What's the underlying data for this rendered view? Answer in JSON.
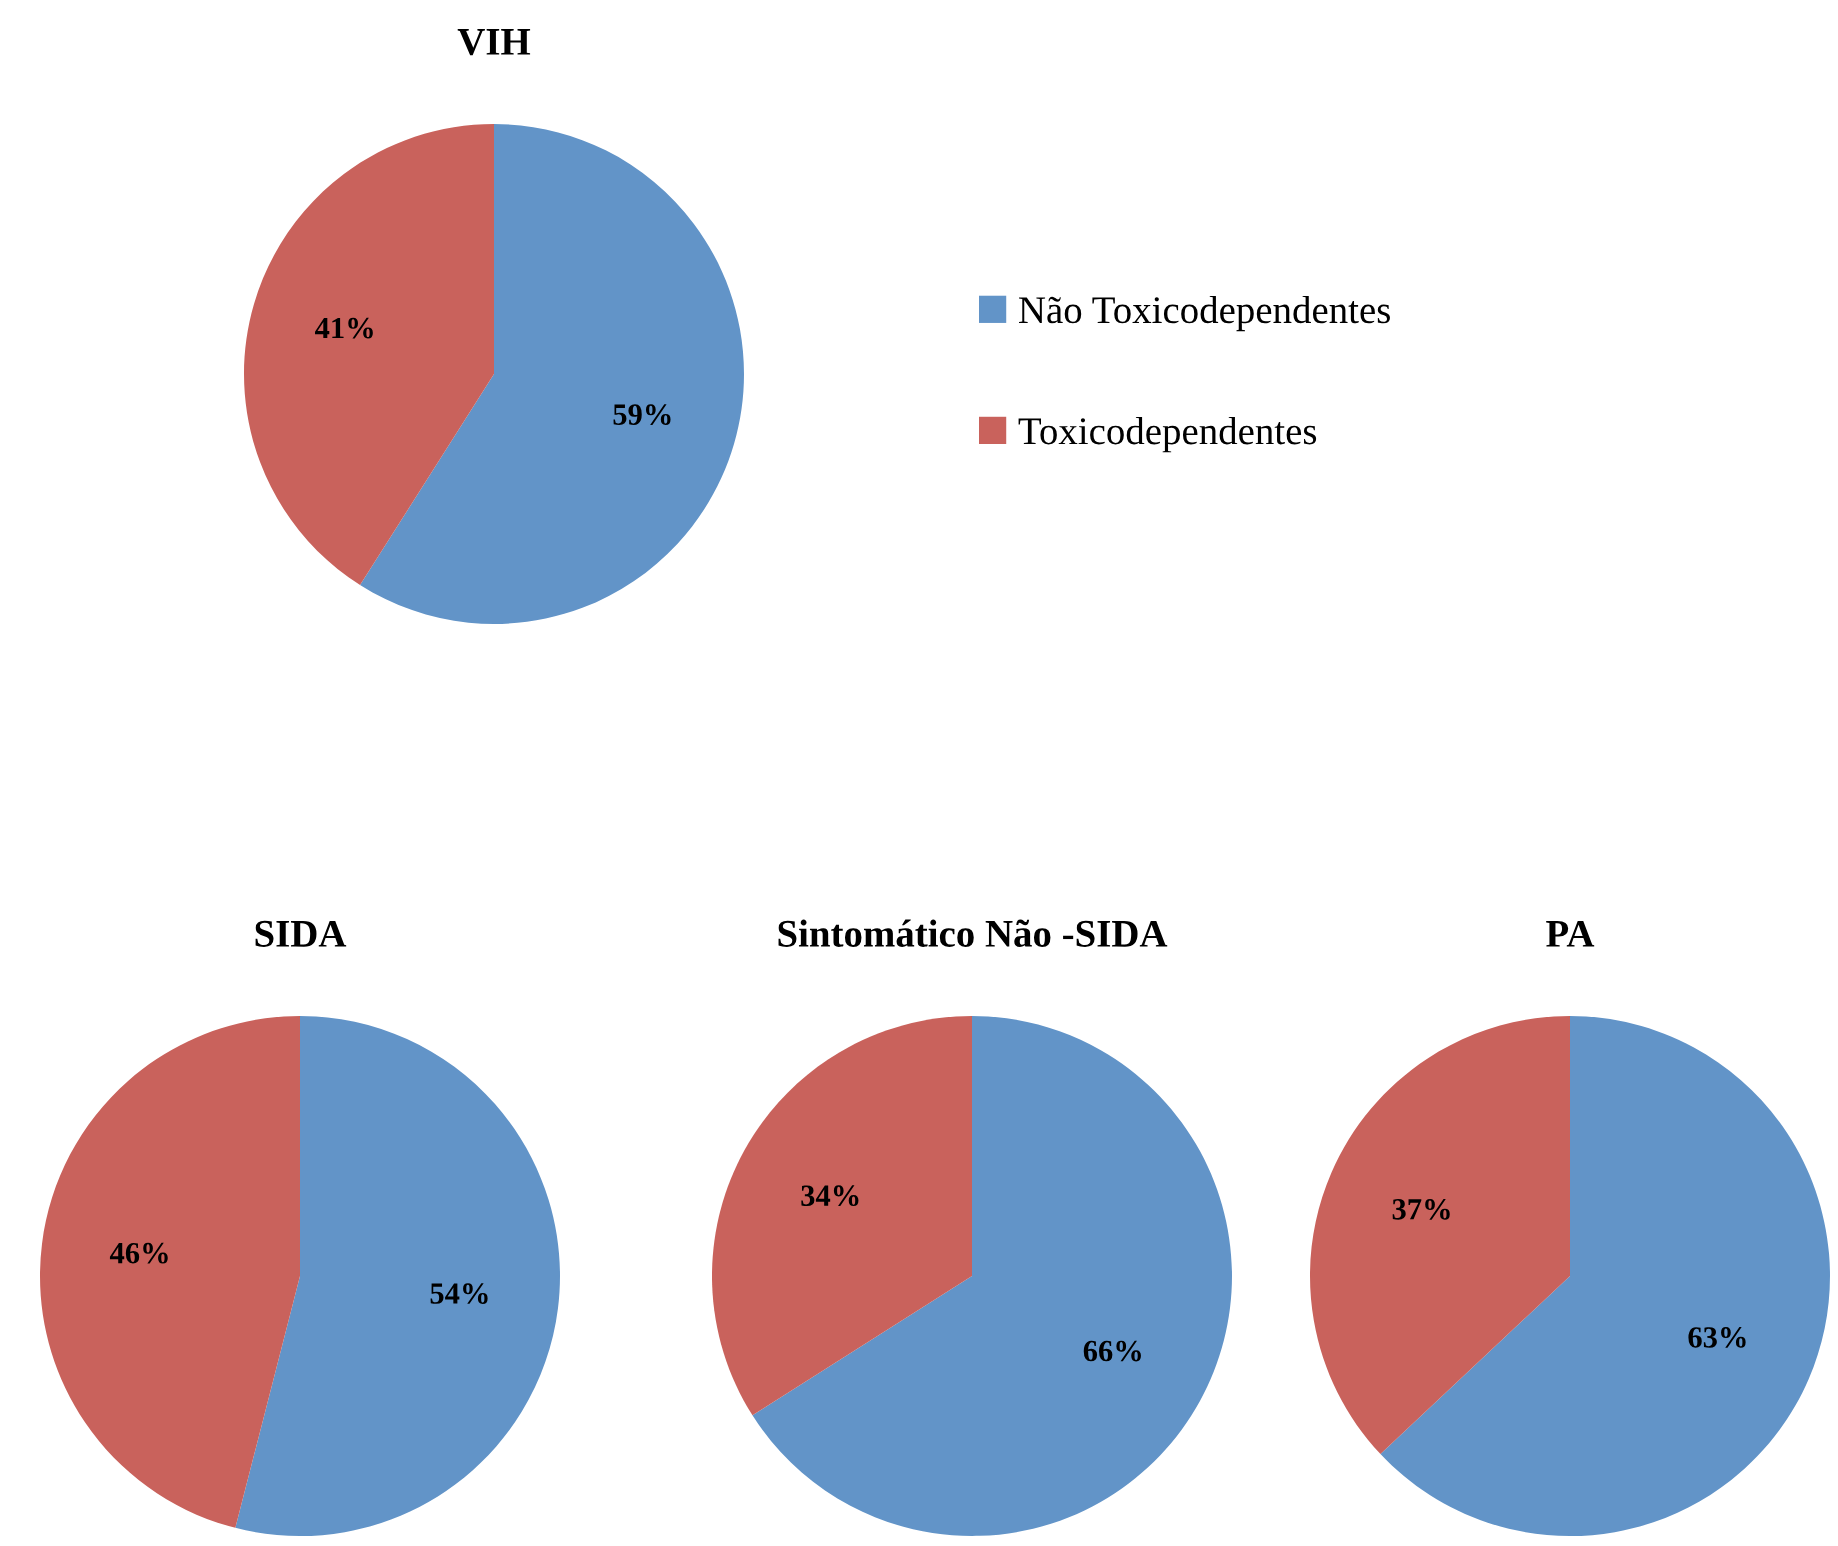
{
  "chart_data": [
    {
      "type": "pie",
      "title": "VIH",
      "categories": [
        "Não Toxicodependentes",
        "Toxicodependentes"
      ],
      "values": [
        59,
        41
      ],
      "colors": [
        "#6294c8",
        "#c9625c"
      ],
      "value_labels": [
        "59%",
        "41%"
      ],
      "legend": "right"
    },
    {
      "type": "pie",
      "title": "SIDA",
      "categories": [
        null,
        null
      ],
      "values": [
        54,
        46
      ],
      "colors": [
        "#6294c8",
        "#c9625c"
      ],
      "value_labels": [
        "54%",
        "46%"
      ]
    },
    {
      "type": "pie",
      "title": "Sintomático Não -SIDA",
      "categories": [
        null,
        null
      ],
      "values": [
        66,
        34
      ],
      "colors": [
        "#6294c8",
        "#c9625c"
      ],
      "value_labels": [
        "66%",
        "34%"
      ]
    },
    {
      "type": "pie",
      "title": "PA",
      "categories": [
        null,
        null
      ],
      "values": [
        63,
        37
      ],
      "colors": [
        "#6294c8",
        "#c9625c"
      ],
      "value_labels": [
        "63%",
        "37%"
      ]
    }
  ]
}
